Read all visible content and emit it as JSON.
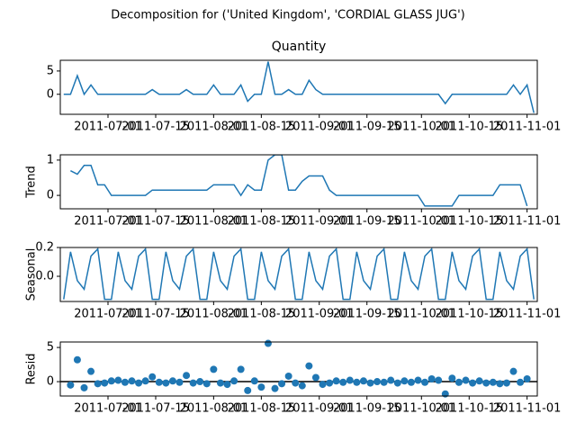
{
  "chart_data": {
    "type": "decomposition",
    "title": "Decomposition for ('United Kingdom', 'CORDIAL GLASS JUG')",
    "color": "#1f77b4",
    "x": [
      "2011-06-18",
      "2011-06-20",
      "2011-06-22",
      "2011-06-24",
      "2011-06-26",
      "2011-06-28",
      "2011-06-30",
      "2011-07-02",
      "2011-07-04",
      "2011-07-06",
      "2011-07-08",
      "2011-07-10",
      "2011-07-12",
      "2011-07-14",
      "2011-07-16",
      "2011-07-18",
      "2011-07-20",
      "2011-07-22",
      "2011-07-24",
      "2011-07-26",
      "2011-07-28",
      "2011-07-30",
      "2011-08-01",
      "2011-08-03",
      "2011-08-05",
      "2011-08-07",
      "2011-08-09",
      "2011-08-11",
      "2011-08-13",
      "2011-08-15",
      "2011-08-17",
      "2011-08-19",
      "2011-08-21",
      "2011-08-23",
      "2011-08-25",
      "2011-08-27",
      "2011-08-29",
      "2011-08-31",
      "2011-09-02",
      "2011-09-04",
      "2011-09-06",
      "2011-09-08",
      "2011-09-10",
      "2011-09-12",
      "2011-09-14",
      "2011-09-16",
      "2011-09-18",
      "2011-09-20",
      "2011-09-22",
      "2011-09-24",
      "2011-09-26",
      "2011-09-28",
      "2011-09-30",
      "2011-10-02",
      "2011-10-04",
      "2011-10-06",
      "2011-10-08",
      "2011-10-10",
      "2011-10-12",
      "2011-10-14",
      "2011-10-16",
      "2011-10-18",
      "2011-10-20",
      "2011-10-22",
      "2011-10-24",
      "2011-10-26",
      "2011-10-28",
      "2011-10-30",
      "2011-11-01",
      "2011-11-03"
    ],
    "xlim": [
      "2011-06-17",
      "2011-11-04"
    ],
    "xticks": [
      "2011-07-01",
      "2011-07-15",
      "2011-08-01",
      "2011-08-15",
      "2011-09-01",
      "2011-09-15",
      "2011-10-01",
      "2011-10-15",
      "2011-11-01"
    ],
    "panels": [
      {
        "type": "line",
        "title": "Quantity",
        "ylim": [
          -4.3,
          7.3
        ],
        "yticks": [
          0,
          5
        ],
        "values": [
          0,
          0,
          4,
          0,
          2,
          0,
          0,
          0,
          0,
          0,
          0,
          0,
          0,
          1,
          0,
          0,
          0,
          0,
          1,
          0,
          0,
          0,
          2,
          0,
          0,
          0,
          2,
          -1.5,
          0,
          0,
          7,
          0,
          0,
          1,
          0,
          0,
          3,
          1,
          0,
          0,
          0,
          0,
          0,
          0,
          0,
          0,
          0,
          0,
          0,
          0,
          0,
          0,
          0,
          0,
          0,
          0,
          -2,
          0,
          0,
          0,
          0,
          0,
          0,
          0,
          0,
          0,
          2,
          0,
          2,
          -4
        ]
      },
      {
        "type": "line",
        "ylabel": "Trend",
        "ylim": [
          -0.38,
          1.15
        ],
        "yticks": [
          0,
          1
        ],
        "values": [
          null,
          0.7,
          0.6,
          0.85,
          0.85,
          0.3,
          0.3,
          0,
          0,
          0,
          0,
          0,
          0,
          0.15,
          0.15,
          0.15,
          0.15,
          0.15,
          0.15,
          0.15,
          0.15,
          0.15,
          0.3,
          0.3,
          0.3,
          0.3,
          0,
          0.3,
          0.15,
          0.15,
          1.0,
          1.15,
          1.15,
          0.15,
          0.15,
          0.4,
          0.55,
          0.55,
          0.55,
          0.15,
          0,
          0,
          0,
          0,
          0,
          0,
          0,
          0,
          0,
          0,
          0,
          0,
          0,
          -0.3,
          -0.3,
          -0.3,
          -0.3,
          -0.3,
          0,
          0,
          0,
          0,
          0,
          0,
          0.3,
          0.3,
          0.3,
          0.3,
          -0.3,
          null
        ]
      },
      {
        "type": "line",
        "ylabel": "Seasonal",
        "ylim": [
          -0.175,
          0.2
        ],
        "yticks": [
          {
            "value": 0,
            "label": "0.0"
          },
          0.2
        ],
        "values": [
          -0.16,
          0.17,
          -0.03,
          -0.09,
          0.14,
          0.19,
          -0.16,
          -0.16,
          0.17,
          -0.03,
          -0.09,
          0.14,
          0.19,
          -0.16,
          -0.16,
          0.17,
          -0.03,
          -0.09,
          0.14,
          0.19,
          -0.16,
          -0.16,
          0.17,
          -0.03,
          -0.09,
          0.14,
          0.19,
          -0.16,
          -0.16,
          0.17,
          -0.03,
          -0.09,
          0.14,
          0.19,
          -0.16,
          -0.16,
          0.17,
          -0.03,
          -0.09,
          0.14,
          0.19,
          -0.16,
          -0.16,
          0.17,
          -0.03,
          -0.09,
          0.14,
          0.19,
          -0.16,
          -0.16,
          0.17,
          -0.03,
          -0.09,
          0.14,
          0.19,
          -0.16,
          -0.16,
          0.17,
          -0.03,
          -0.09,
          0.14,
          0.19,
          -0.16,
          -0.16,
          0.17,
          -0.03,
          -0.09,
          0.14,
          0.19,
          -0.16
        ]
      },
      {
        "type": "scatter",
        "ylabel": "Resid",
        "ylim": [
          -2.1,
          5.8
        ],
        "yticks": [
          0,
          5
        ],
        "baseline": 0,
        "values": [
          null,
          -0.5,
          3.2,
          -0.9,
          1.5,
          -0.3,
          -0.2,
          0.1,
          0.2,
          -0.1,
          0.1,
          -0.2,
          0.1,
          0.7,
          -0.1,
          -0.2,
          0.1,
          -0.1,
          0.9,
          -0.2,
          0,
          -0.3,
          1.8,
          -0.2,
          -0.4,
          0.1,
          1.8,
          -1.3,
          0.1,
          -0.8,
          5.6,
          -1.0,
          -0.3,
          0.8,
          -0.2,
          -0.6,
          2.3,
          0.6,
          -0.4,
          -0.2,
          0.1,
          -0.1,
          0.2,
          -0.1,
          0.1,
          -0.2,
          0,
          -0.1,
          0.2,
          -0.2,
          0.1,
          -0.1,
          0.2,
          -0.1,
          0.4,
          0.2,
          -1.8,
          0.5,
          -0.1,
          0.2,
          -0.2,
          0.1,
          -0.2,
          -0.1,
          -0.3,
          -0.2,
          1.5,
          -0.1,
          0.4,
          null
        ]
      }
    ]
  }
}
